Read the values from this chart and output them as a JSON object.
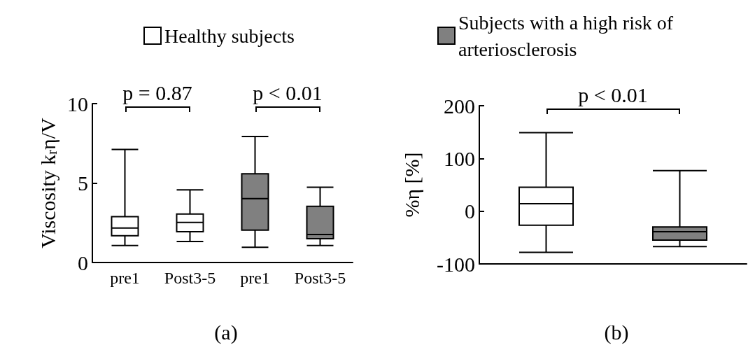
{
  "chart_data": [
    {
      "type": "box",
      "title": "(a)",
      "ylabel": "Viscosity k$_{r}$η/V",
      "categories": [
        "pre1",
        "Post3-5",
        "pre1",
        "Post3-5"
      ],
      "ylim": [
        0,
        10
      ],
      "yticks": [
        0,
        5,
        10
      ],
      "grid": false,
      "legend": "top",
      "annotations": [
        "p = 0.87",
        "p < 0.01"
      ],
      "series": [
        {
          "name": "Healthy subjects",
          "color": "#ffffff",
          "boxes": [
            {
              "low": 1.07,
              "q1": 1.69,
              "median": 2.17,
              "q3": 2.89,
              "high": 7.12
            },
            {
              "low": 1.32,
              "q1": 1.94,
              "median": 2.52,
              "q3": 3.05,
              "high": 4.57
            },
            null,
            null
          ]
        },
        {
          "name": "Subjects with a high risk of arteriosclerosis",
          "color": "#808080",
          "boxes": [
            null,
            null,
            {
              "low": 0.96,
              "q1": 2.04,
              "median": 4.02,
              "q3": 5.58,
              "high": 7.93
            },
            {
              "low": 1.07,
              "q1": 1.5,
              "median": 1.76,
              "q3": 3.54,
              "high": 4.74
            }
          ]
        }
      ]
    },
    {
      "type": "box",
      "title": "(b)",
      "ylabel": "%η [%]",
      "categories": [
        null,
        null
      ],
      "ylim": [
        -100,
        200
      ],
      "yticks": [
        -100,
        0,
        100,
        200
      ],
      "grid": false,
      "legend": false,
      "annotations": [
        "p < 0.01"
      ],
      "series": [
        {
          "color": "#ffffff",
          "boxes": [
            {
              "low": -78,
              "q1": -26.6,
              "median": 14,
              "q3": 45.5,
              "high": 149
            },
            null
          ]
        },
        {
          "color": "#808080",
          "boxes": [
            null,
            {
              "low": -67,
              "q1": -55,
              "median": -39,
              "q3": -30,
              "high": 77
            }
          ]
        }
      ]
    }
  ]
}
